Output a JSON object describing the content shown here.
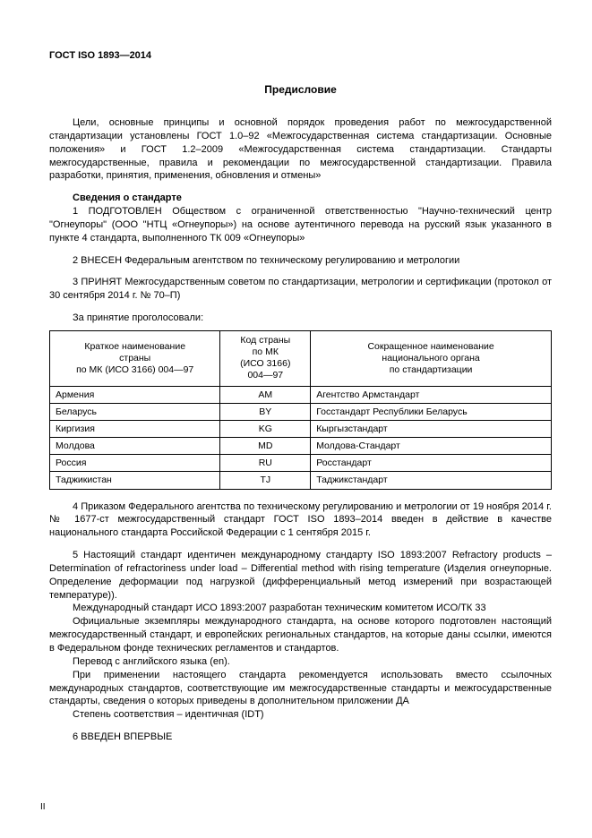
{
  "doc_code": "ГОСТ ISO 1893—2014",
  "title": "Предисловие",
  "intro": "Цели, основные принципы и основной порядок проведения работ по межгосударственной стандартизации установлены ГОСТ 1.0–92 «Межгосударственная система стандартизации. Основные положения» и ГОСТ 1.2–2009 «Межгосударственная система стандартизации. Стандарты межгосударственные, правила и рекомендации по межгосударственной стандартизации. Правила разработки, принятия, применения, обновления и отмены»",
  "info_heading": "Сведения о стандарте",
  "item1": "1 ПОДГОТОВЛЕН Обществом с ограниченной ответственностью \"Научно-технический центр \"Огнеупоры\" (ООО \"НТЦ «Огнеупоры») на основе аутентичного перевода на русский язык указанного в пункте 4 стандарта, выполненного ТК 009 «Огнеупоры»",
  "item2": "2 ВНЕСЕН  Федеральным агентством по техническому регулированию и метрологии",
  "item3": "3  ПРИНЯТ Межгосударственным советом по стандартизации, метрологии и сертификации (протокол от 30 сентября 2014 г. № 70–П)",
  "vote_intro": "За принятие проголосовали:",
  "table": {
    "headers": {
      "country": "Краткое наименование\nстраны\nпо МК (ИСО 3166) 004—97",
      "code": "Код страны\nпо МК\n(ИСО 3166)\n004—97",
      "body": "Сокращенное наименование\nнационального органа\nпо стандартизации"
    },
    "rows": [
      {
        "country": "Армения",
        "code": "AM",
        "body": "Агентство Армстандарт"
      },
      {
        "country": "Беларусь",
        "code": "BY",
        "body": "Госстандарт Республики Беларусь"
      },
      {
        "country": "Киргизия",
        "code": "KG",
        "body": "Кыргызстандарт"
      },
      {
        "country": "Молдова",
        "code": "MD",
        "body": "Молдова-Стандарт"
      },
      {
        "country": "Россия",
        "code": "RU",
        "body": "Росстандарт"
      },
      {
        "country": "Таджикистан",
        "code": "TJ",
        "body": "Таджикстандарт"
      }
    ]
  },
  "item4": "4 Приказом Федерального агентства по техническому регулированию и метрологии от 19 ноября 2014 г. № 1677-ст межгосударственный стандарт ГОСТ ISO 1893–2014 введен в действие в качестве национального стандарта Российской Федерации с 1 сентября 2015 г.",
  "item5a": "5 Настоящий стандарт идентичен международному стандарту ISO 1893:2007 Refractory products – Determination of refractoriness under load – Differential method with rising temperature (Изделия огнеупорные. Определение деформации под нагрузкой (дифференциальный метод измерений при возрастающей температуре)).",
  "item5b": "Международный стандарт ИСО 1893:2007 разработан техническим комитетом ИСО/ТК 33",
  "item5c": "Официальные экземпляры международного стандарта, на основе которого подготовлен настоящий межгосударственный стандарт, и европейских региональных стандартов, на которые даны ссылки, имеются в Федеральном фонде технических регламентов и стандартов.",
  "item5d": "Перевод с английского языка (en).",
  "item5e": "При применении настоящего стандарта рекомендуется использовать вместо ссылочных международных стандартов, соответствующие им межгосударственные стандарты и межгосударственные стандарты, сведения о которых приведены в дополнительном приложении ДА",
  "item5f": "Степень соответствия – идентичная (IDT)",
  "item6": "6    ВВЕДЕН ВПЕРВЫЕ",
  "page_number": "II",
  "col_widths": {
    "country": "34%",
    "code": "18%",
    "body": "48%"
  }
}
